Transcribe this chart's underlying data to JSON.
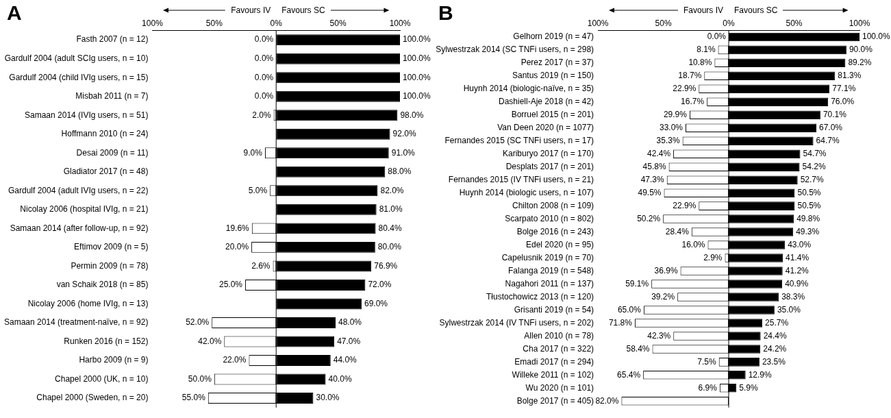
{
  "chart_data": [
    {
      "type": "bar",
      "title": "A",
      "orientation": "horizontal",
      "grid": false,
      "legend": false,
      "annotations": [
        "Favours IV",
        "Favours SC"
      ],
      "categories": [
        "Fasth 2007 (n = 12)",
        "Gardulf 2004 (adult SCIg users, n = 10)",
        "Gardulf 2004 (child IVIg users, n = 15)",
        "Misbah 2011 (n = 7)",
        "Samaan 2014 (IVIg users, n = 51)",
        "Hoffmann 2010 (n = 24)",
        "Desai 2009 (n = 11)",
        "Gladiator 2017 (n = 48)",
        "Gardulf 2004 (adult IVIg users, n = 22)",
        "Nicolay 2006 (hospital IVIg, n = 21)",
        "Samaan 2014 (after follow-up, n = 92)",
        "Eftimov 2009 (n = 5)",
        "Permin 2009 (n = 78)",
        "van Schaik 2018 (n = 85)",
        "Nicolay 2006 (home IVIg, n = 13)",
        "Samaan 2014 (treatment-naïve, n = 92)",
        "Runken 2016 (n = 152)",
        "Harbo 2009 (n = 9)",
        "Chapel 2000 (UK, n = 10)",
        "Chapel 2000 (Sweden, n = 20)"
      ],
      "xlim": [
        -100,
        100
      ],
      "xticks": [
        {
          "value": -100,
          "label": "100%"
        },
        {
          "value": -50,
          "label": "50%"
        },
        {
          "value": 0,
          "label": "0%"
        },
        {
          "value": 50,
          "label": "50%"
        },
        {
          "value": 100,
          "label": "100%"
        }
      ],
      "ref_lines": [
        {
          "axis": "x",
          "value": 0,
          "color": "#000000"
        }
      ],
      "series": [
        {
          "color": "#ffffff",
          "values": [
            0,
            0,
            0,
            0,
            2.0,
            null,
            9.0,
            null,
            5.0,
            null,
            19.6,
            20.0,
            2.6,
            25.0,
            null,
            52.0,
            42.0,
            22.0,
            50.0,
            55.0
          ],
          "base": [
            null,
            null,
            null,
            null,
            -2.0,
            null,
            -9.0,
            null,
            -5.0,
            null,
            -19.6,
            -20.0,
            -2.6,
            -25.0,
            null,
            -52.0,
            -42.0,
            -22.0,
            -50.0,
            -55.0
          ],
          "value_labels": [
            "0.0%",
            "0.0%",
            "0.0%",
            "0.0%",
            "2.0%",
            null,
            "9.0%",
            null,
            "5.0%",
            null,
            "19.6%",
            "20.0%",
            "2.6%",
            "25.0%",
            null,
            "52.0%",
            "42.0%",
            "22.0%",
            "50.0%",
            "55.0%"
          ]
        },
        {
          "color": "#000000",
          "values": [
            100.0,
            100.0,
            100.0,
            100.0,
            98.0,
            92.0,
            91.0,
            88.0,
            82.0,
            81.0,
            80.4,
            80.0,
            76.9,
            72.0,
            69.0,
            48.0,
            47.0,
            44.0,
            40.0,
            30.0
          ],
          "value_labels": [
            "100.0%",
            "100.0%",
            "100.0%",
            "100.0%",
            "98.0%",
            "92.0%",
            "91.0%",
            "88.0%",
            "82.0%",
            "81.0%",
            "80.4%",
            "80.0%",
            "76.9%",
            "72.0%",
            "69.0%",
            "48.0%",
            "47.0%",
            "44.0%",
            "40.0%",
            "30.0%"
          ]
        }
      ]
    },
    {
      "type": "bar",
      "title": "B",
      "orientation": "horizontal",
      "grid": false,
      "legend": false,
      "annotations": [
        "Favours IV",
        "Favours SC"
      ],
      "categories": [
        "Gelhorn 2019 (n = 47)",
        "Sylwestrzak 2014 (SC TNFi users, n = 298)",
        "Perez 2017 (n = 37)",
        "Santus 2019 (n = 150)",
        "Huynh 2014 (biologic-naïve, n = 35)",
        "Dashiell-Aje 2018 (n = 42)",
        "Borruel 2015 (n = 201)",
        "Van Deen 2020 (n = 1077)",
        "Fernandes 2015 (SC TNFi users, n = 17)",
        "Kariburyo 2017 (n = 170)",
        "Desplats 2017 (n = 201)",
        "Fernandes 2015 (IV TNFi users, n = 21)",
        "Huynh 2014 (biologic users, n = 107)",
        "Chilton 2008 (n = 109)",
        "Scarpato 2010 (n = 802)",
        "Bolge 2016 (n = 243)",
        "Edel 2020 (n = 95)",
        "Capelusnik 2019 (n = 70)",
        "Falanga 2019 (n = 548)",
        "Nagahori 2011 (n = 137)",
        "Tłustochowicz 2013 (n = 120)",
        "Grisanti 2019 (n = 54)",
        "Sylwestrzak 2014 (IV TNFi users, n = 202)",
        "Allen 2010 (n = 78)",
        "Cha 2017 (n = 322)",
        "Emadi 2017 (n = 294)",
        "Willeke 2011 (n = 102)",
        "Wu 2020 (n = 101)",
        "Bolge 2017 (n = 405)"
      ],
      "xlim": [
        -100,
        100
      ],
      "xticks": [
        {
          "value": -100,
          "label": "100%"
        },
        {
          "value": -50,
          "label": "50%"
        },
        {
          "value": 0,
          "label": "0%"
        },
        {
          "value": 50,
          "label": "50%"
        },
        {
          "value": 100,
          "label": "100%"
        }
      ],
      "ref_lines": [
        {
          "axis": "x",
          "value": 0,
          "color": "#000000"
        }
      ],
      "series": [
        {
          "color": "#ffffff",
          "values": [
            0,
            8.1,
            10.8,
            18.7,
            22.9,
            16.7,
            29.9,
            33.0,
            35.3,
            42.4,
            45.8,
            47.3,
            49.5,
            22.9,
            50.2,
            28.4,
            16.0,
            2.9,
            36.9,
            59.1,
            39.2,
            65.0,
            71.8,
            42.3,
            58.4,
            7.5,
            65.4,
            6.9,
            82.0
          ],
          "base": [
            null,
            -8.1,
            -10.8,
            -18.7,
            -22.9,
            -16.7,
            -29.9,
            -33.0,
            -35.3,
            -42.4,
            -45.8,
            -47.3,
            -49.5,
            -22.9,
            -50.2,
            -28.4,
            -16.0,
            -2.9,
            -36.9,
            -59.1,
            -39.2,
            -65.0,
            -71.8,
            -42.3,
            -58.4,
            -7.5,
            -65.4,
            -6.9,
            -82.0
          ],
          "value_labels": [
            "0.0%",
            "8.1%",
            "10.8%",
            "18.7%",
            "22.9%",
            "16.7%",
            "29.9%",
            "33.0%",
            "35.3%",
            "42.4%",
            "45.8%",
            "47.3%",
            "49.5%",
            "22.9%",
            "50.2%",
            "28.4%",
            "16.0%",
            "2.9%",
            "36.9%",
            "59.1%",
            "39.2%",
            "65.0%",
            "71.8%",
            "42.3%",
            "58.4%",
            "7.5%",
            "65.4%",
            "6.9%",
            "82.0%"
          ]
        },
        {
          "color": "#000000",
          "values": [
            100.0,
            90.0,
            89.2,
            81.3,
            77.1,
            76.0,
            70.1,
            67.0,
            64.7,
            54.7,
            54.2,
            52.7,
            50.5,
            50.5,
            49.8,
            49.3,
            43.0,
            41.4,
            41.2,
            40.9,
            38.3,
            35.0,
            25.7,
            24.4,
            24.2,
            23.5,
            12.9,
            5.9,
            null
          ],
          "value_labels": [
            "100.0%",
            "90.0%",
            "89.2%",
            "81.3%",
            "77.1%",
            "76.0%",
            "70.1%",
            "67.0%",
            "64.7%",
            "54.7%",
            "54.2%",
            "52.7%",
            "50.5%",
            "50.5%",
            "49.8%",
            "49.3%",
            "43.0%",
            "41.4%",
            "41.2%",
            "40.9%",
            "38.3%",
            "35.0%",
            "25.7%",
            "24.4%",
            "24.2%",
            "23.5%",
            "12.9%",
            "5.9%",
            null
          ]
        }
      ]
    }
  ]
}
